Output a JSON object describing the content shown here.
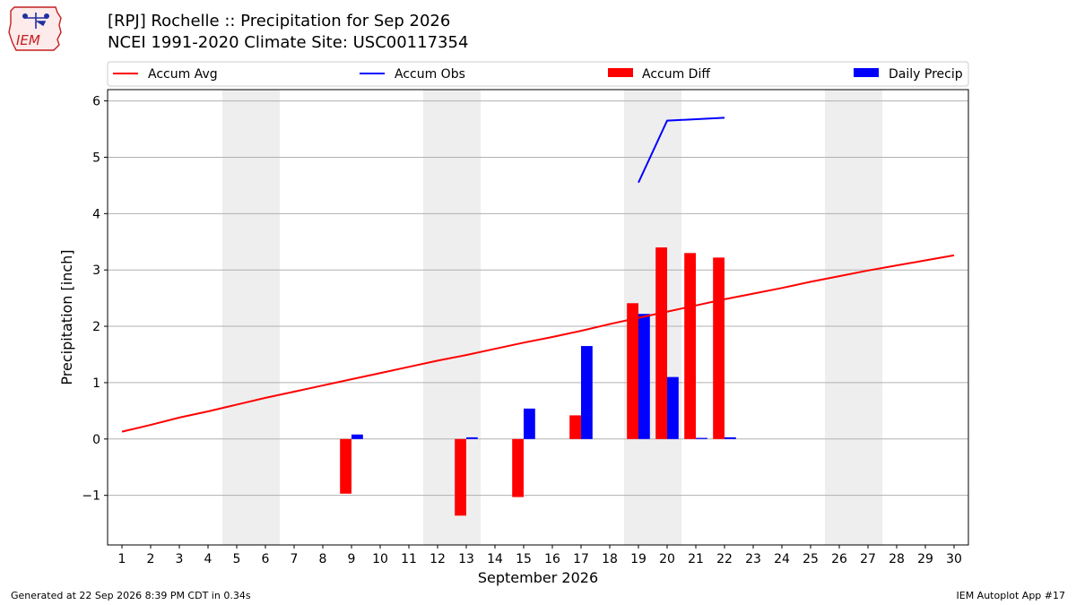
{
  "header": {
    "title_line1": "[RPJ] Rochelle :: Precipitation for Sep 2026",
    "title_line2": "NCEI 1991-2020 Climate Site: USC00117354",
    "logo_text": "IEM"
  },
  "footer": {
    "generated": "Generated at 22 Sep 2026 8:39 PM CDT in 0.34s",
    "app": "IEM Autoplot App #17"
  },
  "colors": {
    "avg": "#ff0000",
    "obs": "#0000ff",
    "diff": "#ff0000",
    "daily": "#0000ff",
    "weekend": "#eeeeee",
    "grid": "#b0b0b0"
  },
  "chart_data": {
    "type": "bar",
    "title": "[RPJ] Rochelle :: Precipitation for Sep 2026",
    "subtitle": "NCEI 1991-2020 Climate Site: USC00117354",
    "xlabel": "September 2026",
    "ylabel": "Precipitation [inch]",
    "xlim": [
      0.5,
      30.5
    ],
    "ylim": [
      -1.88,
      6.2
    ],
    "yticks": [
      -1,
      0,
      1,
      2,
      3,
      4,
      5,
      6
    ],
    "ytick_labels": [
      "−1",
      "0",
      "1",
      "2",
      "3",
      "4",
      "5",
      "6"
    ],
    "days": [
      1,
      2,
      3,
      4,
      5,
      6,
      7,
      8,
      9,
      10,
      11,
      12,
      13,
      14,
      15,
      16,
      17,
      18,
      19,
      20,
      21,
      22,
      23,
      24,
      25,
      26,
      27,
      28,
      29,
      30
    ],
    "weekend_days": [
      5,
      6,
      12,
      13,
      19,
      20,
      26,
      27
    ],
    "grid": true,
    "legend_position": "top",
    "legend": [
      "Accum Avg",
      "Accum Obs",
      "Accum Diff",
      "Daily Precip"
    ],
    "series": [
      {
        "name": "Accum Avg",
        "kind": "line",
        "x": [
          1,
          2,
          3,
          4,
          5,
          6,
          7,
          8,
          9,
          10,
          11,
          12,
          13,
          14,
          15,
          16,
          17,
          18,
          19,
          20,
          21,
          22,
          23,
          24,
          25,
          26,
          27,
          28,
          29,
          30
        ],
        "values": [
          0.13,
          0.25,
          0.38,
          0.49,
          0.61,
          0.73,
          0.84,
          0.95,
          1.06,
          1.17,
          1.28,
          1.39,
          1.49,
          1.6,
          1.71,
          1.81,
          1.92,
          2.04,
          2.15,
          2.26,
          2.37,
          2.48,
          2.58,
          2.68,
          2.79,
          2.89,
          2.99,
          3.08,
          3.17,
          3.26
        ]
      },
      {
        "name": "Accum Obs",
        "kind": "line",
        "x": [
          19,
          20,
          22
        ],
        "values": [
          4.55,
          5.65,
          5.7
        ]
      },
      {
        "name": "Accum Diff",
        "kind": "bar",
        "x": [
          9,
          13,
          15,
          17,
          19,
          20,
          21,
          22
        ],
        "values": [
          -0.97,
          -1.36,
          -1.03,
          0.42,
          2.41,
          3.4,
          3.3,
          3.22
        ]
      },
      {
        "name": "Daily Precip",
        "kind": "bar",
        "x": [
          9,
          13,
          15,
          17,
          19,
          20,
          21,
          22
        ],
        "values": [
          0.08,
          0.03,
          0.54,
          1.65,
          2.22,
          1.1,
          0.02,
          0.03
        ]
      }
    ]
  }
}
